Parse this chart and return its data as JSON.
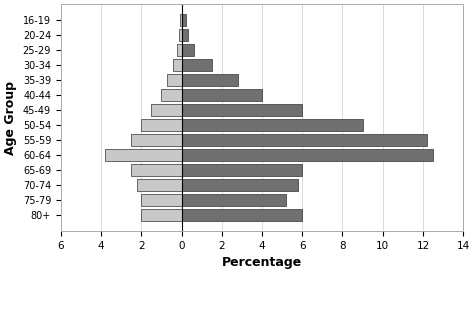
{
  "age_groups": [
    "16-19",
    "20-24",
    "25-29",
    "30-34",
    "35-39",
    "40-44",
    "45-49",
    "50-54",
    "55-59",
    "60-64",
    "65-69",
    "70-74",
    "75-79",
    "80+"
  ],
  "males": [
    0.1,
    0.15,
    0.25,
    0.4,
    0.7,
    1.0,
    1.5,
    2.0,
    2.5,
    3.8,
    2.5,
    2.2,
    2.0,
    2.0
  ],
  "females": [
    0.2,
    0.3,
    0.6,
    1.5,
    2.8,
    4.0,
    6.0,
    9.0,
    12.2,
    12.5,
    6.0,
    5.8,
    5.2,
    6.0
  ],
  "male_color": "#c8c8c8",
  "female_color": "#707070",
  "bar_edge_color": "#333333",
  "background_color": "#ffffff",
  "xlabel": "Percentage",
  "ylabel": "Age Group",
  "xlim": [
    -6,
    14
  ],
  "xticks": [
    -6,
    -4,
    -2,
    0,
    2,
    4,
    6,
    8,
    10,
    12,
    14
  ],
  "xticklabels": [
    "6",
    "4",
    "2",
    "0",
    "2",
    "4",
    "6",
    "8",
    "10",
    "12",
    "14"
  ]
}
